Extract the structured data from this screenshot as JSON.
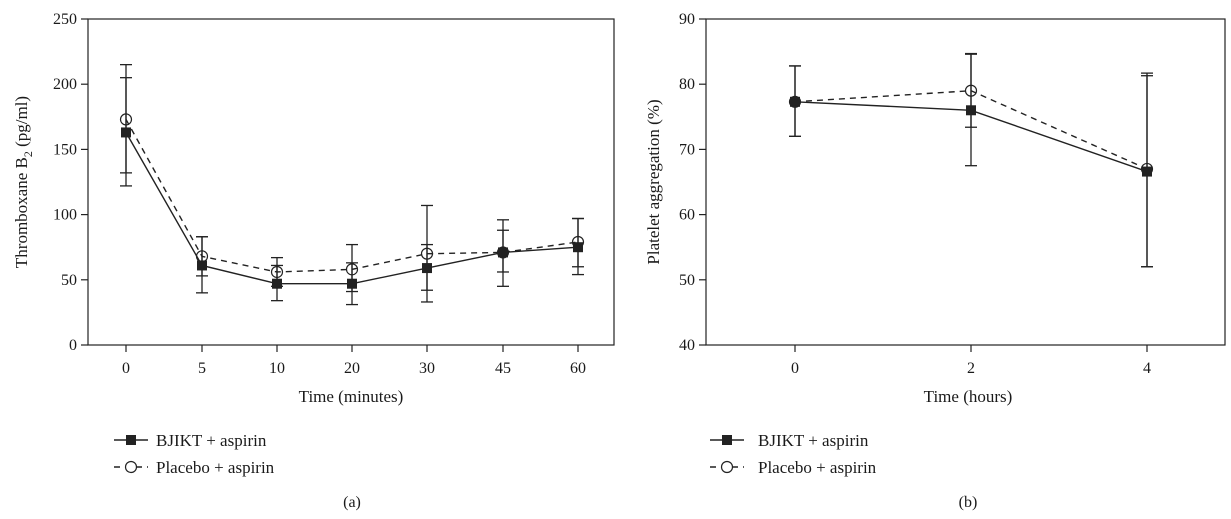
{
  "chart_data": [
    {
      "type": "line",
      "panel_label": "(a)",
      "xlabel": "Time (minutes)",
      "ylabel_main": "Thromboxane B",
      "ylabel_sub": "2",
      "ylabel_unit": "(pg/ml)",
      "categories": [
        "0",
        "5",
        "10",
        "20",
        "30",
        "45",
        "60"
      ],
      "ylim": [
        0,
        250
      ],
      "yticks": [
        0,
        50,
        100,
        150,
        200,
        250
      ],
      "grid": false,
      "legend_position": "bottom-left",
      "series": [
        {
          "name": "BJIKT + aspirin",
          "marker": "filled-square",
          "line": "solid",
          "values": [
            163,
            61,
            47,
            47,
            59,
            71,
            75
          ],
          "err_low": [
            122,
            40,
            34,
            41,
            33,
            45,
            54
          ],
          "err_high": [
            205,
            83,
            61,
            63,
            77,
            96,
            97
          ]
        },
        {
          "name": "Placebo + aspirin",
          "marker": "open-circle",
          "line": "dashed",
          "values": [
            173,
            68,
            56,
            58,
            70,
            71,
            79
          ],
          "err_low": [
            132,
            53,
            45,
            31,
            42,
            56,
            60
          ],
          "err_high": [
            215,
            83,
            67,
            77,
            107,
            88,
            97
          ]
        }
      ]
    },
    {
      "type": "line",
      "panel_label": "(b)",
      "xlabel": "Time (hours)",
      "ylabel_main": "Platelet aggregation (%)",
      "ylabel_sub": "",
      "ylabel_unit": "",
      "categories": [
        "0",
        "2",
        "4"
      ],
      "ylim": [
        40,
        90
      ],
      "yticks": [
        40,
        50,
        60,
        70,
        80,
        90
      ],
      "grid": false,
      "legend_position": "bottom-left",
      "series": [
        {
          "name": "BJIKT + aspirin",
          "marker": "filled-square",
          "line": "solid",
          "values": [
            77.3,
            76,
            66.6
          ],
          "err_low": [
            72,
            67.5,
            52
          ],
          "err_high": [
            82.8,
            84.6,
            81.3
          ]
        },
        {
          "name": "Placebo + aspirin",
          "marker": "open-circle",
          "line": "dashed",
          "values": [
            77.3,
            79,
            67
          ],
          "err_low": [
            72,
            73.4,
            52
          ],
          "err_high": [
            82.8,
            84.7,
            81.7
          ]
        }
      ]
    }
  ]
}
